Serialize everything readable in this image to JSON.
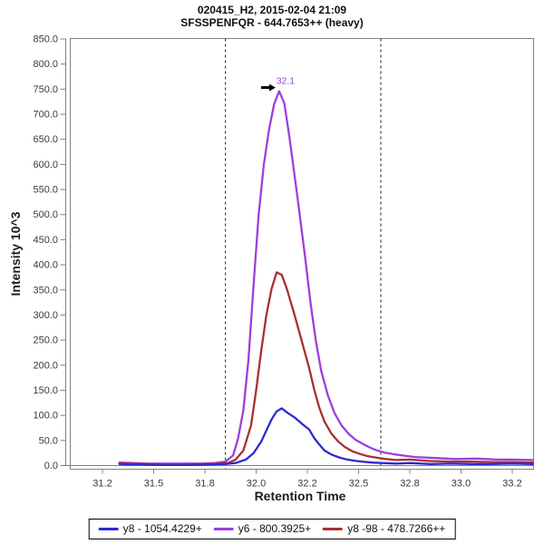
{
  "chart_data": {
    "type": "line",
    "title": "020415_H2, 2015-02-04 21:09",
    "subtitle": "SFSSPENFQR - 644.7653++ (heavy)",
    "xlabel": "Retention Time",
    "ylabel": "Intensity 10^3",
    "x_ticks": [
      "31.2",
      "31.5",
      "31.8",
      "32.0",
      "32.2",
      "32.5",
      "32.8",
      "33.0",
      "33.2"
    ],
    "ylim": [
      0,
      850
    ],
    "y_tick_step": 50,
    "grid": false,
    "legend_position": "bottom",
    "frame_color": "#808080",
    "tick_label_color": "#3a3a3a",
    "boundary_line_color": "#444444",
    "integration_boundaries": [
      31.88,
      32.63
    ],
    "peak_annotation": {
      "text": "32.1",
      "rt": 32.09,
      "value": 746,
      "color": "#9B3FDE",
      "arrow_color": "#000000"
    },
    "series": [
      {
        "name": "y6 - 800.3925+",
        "color": "#9B3FDE",
        "points": [
          [
            31.3,
            6
          ],
          [
            31.38,
            5
          ],
          [
            31.46,
            4
          ],
          [
            31.54,
            4
          ],
          [
            31.62,
            4
          ],
          [
            31.7,
            4
          ],
          [
            31.78,
            4
          ],
          [
            31.84,
            5
          ],
          [
            31.88,
            8
          ],
          [
            31.91,
            20
          ],
          [
            31.93,
            55
          ],
          [
            31.95,
            110
          ],
          [
            31.97,
            210
          ],
          [
            31.99,
            360
          ],
          [
            32.01,
            500
          ],
          [
            32.03,
            600
          ],
          [
            32.05,
            668
          ],
          [
            32.07,
            720
          ],
          [
            32.09,
            746
          ],
          [
            32.11,
            722
          ],
          [
            32.13,
            655
          ],
          [
            32.16,
            540
          ],
          [
            32.19,
            420
          ],
          [
            32.22,
            320
          ],
          [
            32.25,
            248
          ],
          [
            32.28,
            190
          ],
          [
            32.32,
            140
          ],
          [
            32.36,
            104
          ],
          [
            32.4,
            80
          ],
          [
            32.44,
            64
          ],
          [
            32.48,
            52
          ],
          [
            32.52,
            44
          ],
          [
            32.56,
            37
          ],
          [
            32.6,
            31
          ],
          [
            32.65,
            26
          ],
          [
            32.7,
            23
          ],
          [
            32.76,
            20
          ],
          [
            32.82,
            17
          ],
          [
            32.9,
            15
          ],
          [
            32.98,
            13
          ],
          [
            33.06,
            14
          ],
          [
            33.14,
            12
          ],
          [
            33.2,
            12
          ],
          [
            33.28,
            11
          ]
        ]
      },
      {
        "name": "y8 -98 - 478.7266++",
        "color": "#A93030",
        "points": [
          [
            31.3,
            4
          ],
          [
            31.38,
            3
          ],
          [
            31.46,
            3
          ],
          [
            31.54,
            2
          ],
          [
            31.62,
            2
          ],
          [
            31.7,
            2
          ],
          [
            31.78,
            3
          ],
          [
            31.84,
            3
          ],
          [
            31.89,
            5
          ],
          [
            31.92,
            12
          ],
          [
            31.95,
            30
          ],
          [
            31.98,
            80
          ],
          [
            32.0,
            150
          ],
          [
            32.02,
            230
          ],
          [
            32.04,
            300
          ],
          [
            32.06,
            352
          ],
          [
            32.08,
            385
          ],
          [
            32.1,
            380
          ],
          [
            32.12,
            352
          ],
          [
            32.15,
            300
          ],
          [
            32.18,
            245
          ],
          [
            32.21,
            195
          ],
          [
            32.24,
            152
          ],
          [
            32.27,
            115
          ],
          [
            32.3,
            88
          ],
          [
            32.34,
            64
          ],
          [
            32.38,
            48
          ],
          [
            32.42,
            37
          ],
          [
            32.46,
            29
          ],
          [
            32.5,
            24
          ],
          [
            32.55,
            19
          ],
          [
            32.6,
            16
          ],
          [
            32.66,
            13
          ],
          [
            32.72,
            11
          ],
          [
            32.8,
            12
          ],
          [
            32.88,
            9
          ],
          [
            32.96,
            8
          ],
          [
            33.04,
            8
          ],
          [
            33.12,
            7
          ],
          [
            33.2,
            7
          ],
          [
            33.28,
            6
          ]
        ]
      },
      {
        "name": "y8 - 1054.4229+",
        "color": "#2B2BD0",
        "points": [
          [
            31.3,
            3
          ],
          [
            31.35,
            2
          ],
          [
            31.42,
            2
          ],
          [
            31.5,
            1
          ],
          [
            31.58,
            1
          ],
          [
            31.66,
            1
          ],
          [
            31.74,
            1
          ],
          [
            31.82,
            2
          ],
          [
            31.88,
            3
          ],
          [
            31.92,
            5
          ],
          [
            31.96,
            12
          ],
          [
            31.99,
            25
          ],
          [
            32.02,
            48
          ],
          [
            32.04,
            70
          ],
          [
            32.06,
            92
          ],
          [
            32.08,
            108
          ],
          [
            32.1,
            114
          ],
          [
            32.12,
            106
          ],
          [
            32.15,
            96
          ],
          [
            32.18,
            83
          ],
          [
            32.21,
            72
          ],
          [
            32.24,
            55
          ],
          [
            32.27,
            42
          ],
          [
            32.3,
            30
          ],
          [
            32.34,
            22
          ],
          [
            32.38,
            17
          ],
          [
            32.42,
            13
          ],
          [
            32.47,
            10
          ],
          [
            32.52,
            8
          ],
          [
            32.58,
            6
          ],
          [
            32.64,
            5
          ],
          [
            32.72,
            4
          ],
          [
            32.8,
            5
          ],
          [
            32.88,
            3
          ],
          [
            32.96,
            4
          ],
          [
            33.04,
            3
          ],
          [
            33.12,
            3
          ],
          [
            33.2,
            4
          ],
          [
            33.28,
            3
          ]
        ]
      }
    ],
    "legend_order": [
      "y8 - 1054.4229+",
      "y6 - 800.3925+",
      "y8 -98 - 478.7266++"
    ]
  }
}
